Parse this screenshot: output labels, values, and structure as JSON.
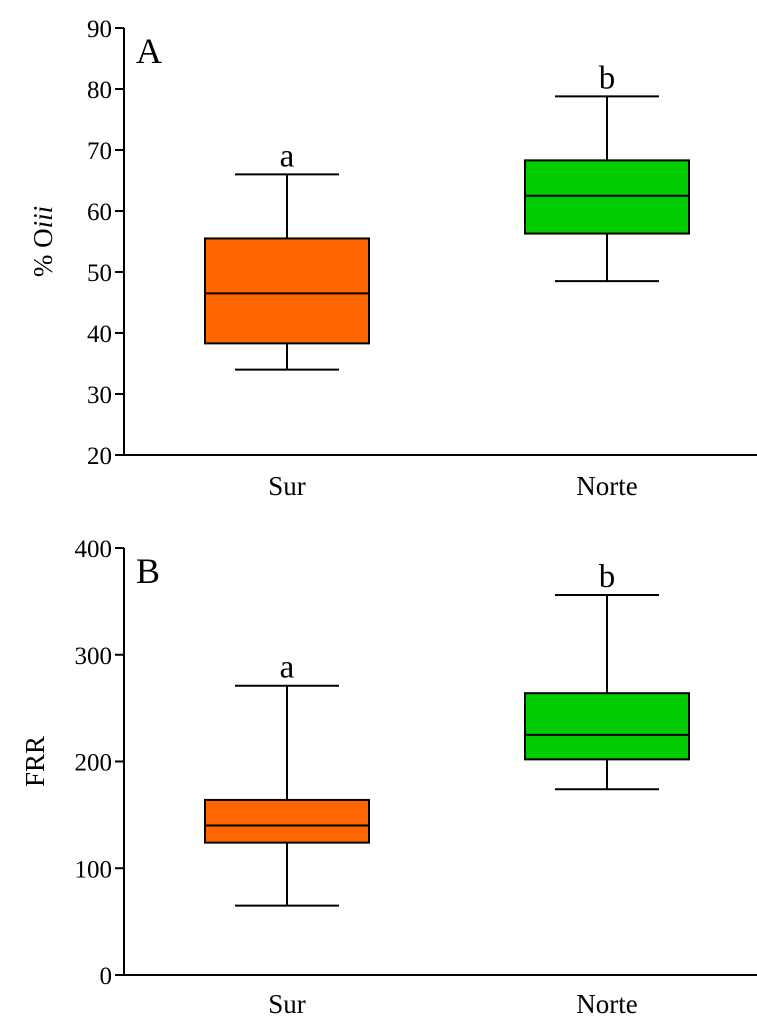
{
  "chart_data": [
    {
      "type": "box",
      "panel_label": "A",
      "ylabel": "% O",
      "ylabel_italic_suffix": "iii",
      "ylim": [
        20,
        90
      ],
      "yticks": [
        20,
        30,
        40,
        50,
        60,
        70,
        80,
        90
      ],
      "categories": [
        "Sur",
        "Norte"
      ],
      "boxes": [
        {
          "category": "Sur",
          "min": 34,
          "q1": 38.3,
          "median": 46.5,
          "q3": 55.5,
          "max": 66,
          "letter": "a",
          "color": "#ff6600"
        },
        {
          "category": "Norte",
          "min": 48.5,
          "q1": 56.3,
          "median": 62.5,
          "q3": 68.3,
          "max": 78.8,
          "letter": "b",
          "color": "#00cc00"
        }
      ]
    },
    {
      "type": "box",
      "panel_label": "B",
      "ylabel": "FRR",
      "ylim": [
        0,
        400
      ],
      "yticks": [
        0,
        100,
        200,
        300,
        400
      ],
      "categories": [
        "Sur",
        "Norte"
      ],
      "boxes": [
        {
          "category": "Sur",
          "min": 65,
          "q1": 124,
          "median": 140,
          "q3": 164,
          "max": 271,
          "letter": "a",
          "color": "#ff6600"
        },
        {
          "category": "Norte",
          "min": 174,
          "q1": 202,
          "median": 225,
          "q3": 264,
          "max": 356,
          "letter": "b",
          "color": "#00cc00"
        }
      ]
    }
  ]
}
